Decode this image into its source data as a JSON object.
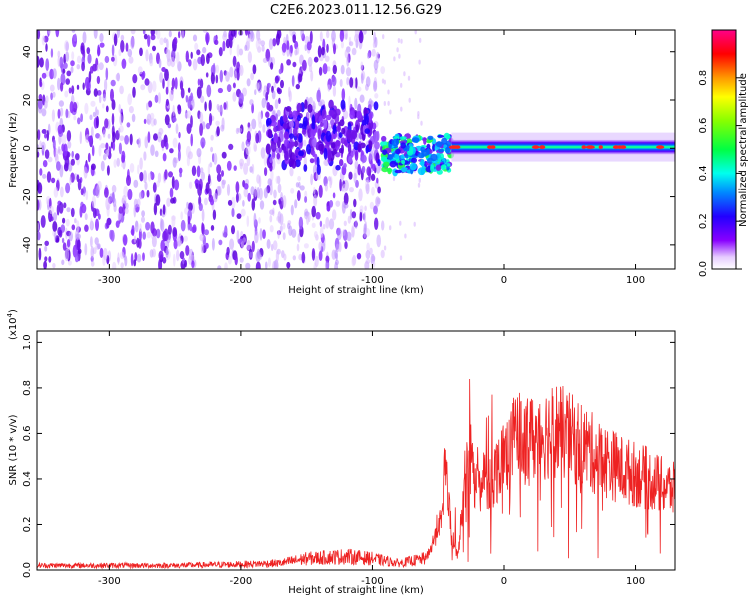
{
  "title": "C2E6.2023.011.12.56.G29",
  "colors": {
    "snr_line": "#ee2222",
    "axis": "#000000"
  },
  "chart_data": [
    {
      "type": "heatmap",
      "xlabel": "Height of straight line (km)",
      "ylabel": "Frequency (Hz)",
      "xlim": [
        -355,
        130
      ],
      "ylim": [
        -50,
        49
      ],
      "xticks": [
        -300,
        -200,
        -100,
        0,
        100
      ],
      "yticks": [
        -40,
        -20,
        0,
        20,
        40
      ],
      "xtick_labels": [
        "-300",
        "-200",
        "-100",
        "0",
        "100"
      ],
      "ytick_labels": [
        "-40",
        "-20",
        "0",
        "20",
        "40"
      ],
      "signal": {
        "noise_region_x": [
          -355,
          -92
        ],
        "dense_noise_x": [
          -355,
          -200
        ],
        "noise_cluster_x": [
          -180,
          -95
        ],
        "noise_cluster_y": [
          -5,
          15
        ],
        "transition_x": [
          -92,
          -40
        ],
        "transition_y": [
          -10,
          5
        ],
        "tone_x": [
          -40,
          130
        ],
        "tone_center_hz": 0.5,
        "tone_halfwidth_hz": 3
      },
      "colorbar": {
        "label": "Normalized spectral amplitude",
        "range": [
          0.0,
          1.0
        ],
        "ticks": [
          0.0,
          0.2,
          0.4,
          0.6,
          0.8
        ],
        "tick_labels": [
          "0.0",
          "0.2",
          "0.4",
          "0.6",
          "0.8"
        ],
        "colormap": "rainbow (white-violet-blue-cyan-green-yellow-red-magenta)"
      }
    },
    {
      "type": "line",
      "xlabel": "Height of straight line (km)",
      "ylabel": "SNR (10 * v/v)",
      "yscale_label": "(x10",
      "yscale_exponent": "4",
      "yscale_suffix": ")",
      "xlim": [
        -355,
        130
      ],
      "ylim": [
        0,
        1.05
      ],
      "xticks": [
        -300,
        -200,
        -100,
        0,
        100
      ],
      "yticks": [
        0.0,
        0.2,
        0.4,
        0.6,
        0.8,
        1.0
      ],
      "xtick_labels": [
        "-300",
        "-200",
        "-100",
        "0",
        "100"
      ],
      "ytick_labels": [
        "0.0",
        "0.2",
        "0.4",
        "0.6",
        "0.8",
        "1.0"
      ],
      "series": [
        {
          "x": [
            -355,
            -300,
            -250,
            -200,
            -170,
            -150,
            -120,
            -100,
            -80,
            -60,
            -55,
            -50,
            -47,
            -45,
            -40,
            -35,
            -30,
            -25,
            -22,
            -20,
            -18,
            -15,
            -10,
            -5,
            0,
            5,
            10,
            15,
            20,
            30,
            40,
            50,
            60,
            70,
            80,
            90,
            100,
            110,
            120,
            130
          ],
          "y": [
            0.02,
            0.02,
            0.02,
            0.025,
            0.03,
            0.05,
            0.06,
            0.05,
            0.03,
            0.05,
            0.1,
            0.2,
            0.25,
            0.5,
            0.15,
            0.06,
            0.4,
            0.5,
            0.4,
            0.45,
            0.3,
            0.4,
            0.38,
            0.45,
            0.52,
            0.55,
            0.6,
            0.55,
            0.57,
            0.6,
            0.62,
            0.58,
            0.55,
            0.5,
            0.47,
            0.44,
            0.42,
            0.4,
            0.37,
            0.35
          ]
        }
      ]
    }
  ]
}
